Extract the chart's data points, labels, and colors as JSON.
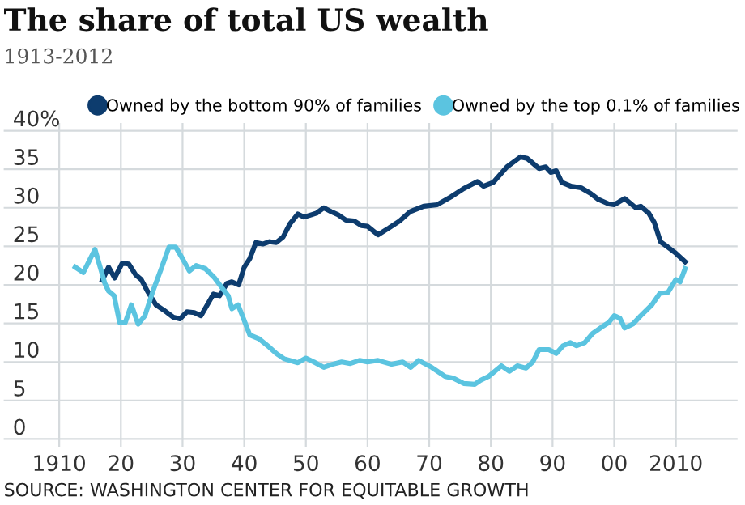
{
  "chart_data": {
    "type": "line",
    "title": "The share of total US wealth",
    "subtitle": "1913-2012",
    "annotations": [
      "SOURCE: WASHINGTON CENTER FOR EQUITABLE GROWTH"
    ],
    "xlim": [
      1901,
      2020
    ],
    "ylim": [
      -1,
      41
    ],
    "xticks": [
      1910,
      {
        "value": 1920,
        "label": "20"
      },
      {
        "value": 1930,
        "label": "30"
      },
      {
        "value": 1940,
        "label": "40"
      },
      {
        "value": 1950,
        "label": "50"
      },
      {
        "value": 1960,
        "label": "60"
      },
      {
        "value": 1970,
        "label": "70"
      },
      {
        "value": 1980,
        "label": "80"
      },
      {
        "value": 1990,
        "label": "90"
      },
      {
        "value": 2000,
        "label": "00"
      },
      2010
    ],
    "yticks": [
      0,
      5,
      10,
      15,
      20,
      25,
      30,
      35,
      {
        "value": 40,
        "label": "40%"
      }
    ],
    "grid": true,
    "legend": "top",
    "series": [
      {
        "name": "Owned by the bottom 90% of families",
        "color": "#0d3c6e",
        "x": [
          1917,
          1918,
          1919,
          1920.2,
          1921.3,
          1922.4,
          1923.3,
          1924.3,
          1925.7,
          1927,
          1928.5,
          1929.6,
          1930.7,
          1931.9,
          1933,
          1935,
          1936,
          1937.2,
          1938,
          1939.1,
          1940,
          1940.9,
          1941.9,
          1943,
          1944.1,
          1945.2,
          1946.3,
          1947.4,
          1948.7,
          1949.7,
          1950.9,
          1951.7,
          1952.9,
          1954.1,
          1955.2,
          1956.5,
          1957.8,
          1959,
          1960,
          1961.7,
          1963.5,
          1965.2,
          1966.9,
          1969.1,
          1971.3,
          1973.5,
          1975.6,
          1977.8,
          1978.8,
          1980.4,
          1982.6,
          1984.8,
          1985.9,
          1987.8,
          1988.9,
          1989.7,
          1990.6,
          1991.5,
          1993,
          1994.6,
          1996.1,
          1997.4,
          1999.1,
          2000,
          2001.7,
          2003.5,
          2004.3,
          2005.6,
          2006.5,
          2007.5,
          2008.7,
          2010,
          2011.5
        ],
        "values": [
          20.6,
          22.3,
          20.9,
          22.8,
          22.7,
          21.3,
          20.7,
          19.2,
          17.4,
          16.7,
          15.8,
          15.6,
          16.5,
          16.4,
          16.0,
          18.8,
          18.6,
          20.2,
          20.4,
          20.0,
          22.3,
          23.4,
          25.5,
          25.3,
          25.6,
          25.5,
          26.2,
          27.9,
          29.2,
          28.8,
          29.1,
          29.3,
          30.0,
          29.5,
          29.1,
          28.4,
          28.3,
          27.7,
          27.6,
          26.5,
          27.4,
          28.3,
          29.5,
          30.2,
          30.4,
          31.4,
          32.5,
          33.4,
          32.8,
          33.3,
          35.3,
          36.6,
          36.4,
          35.1,
          35.3,
          34.6,
          34.8,
          33.3,
          32.8,
          32.6,
          31.9,
          31.1,
          30.5,
          30.4,
          31.2,
          30.0,
          30.2,
          29.3,
          28.1,
          25.6,
          24.9,
          24.1,
          23.0
        ]
      },
      {
        "name": "Owned by the top 0.1% of families",
        "color": "#5bc4e0",
        "x": [
          1912.6,
          1913.9,
          1915.8,
          1917.4,
          1918,
          1918.9,
          1919.8,
          1920.7,
          1921.7,
          1922.8,
          1923.9,
          1925.2,
          1926.5,
          1927.8,
          1928.9,
          1930,
          1931.1,
          1932.2,
          1933.7,
          1935.2,
          1936.5,
          1937.4,
          1938,
          1939,
          1939.7,
          1940.9,
          1942.4,
          1944.1,
          1945.2,
          1946.5,
          1948.7,
          1950,
          1951.3,
          1952.9,
          1954.3,
          1955.8,
          1957.2,
          1958.7,
          1960,
          1961.7,
          1963.9,
          1965.7,
          1967,
          1968.3,
          1970.4,
          1972.6,
          1973.9,
          1975.6,
          1977.4,
          1978.3,
          1979.6,
          1981.7,
          1983,
          1984.3,
          1985.7,
          1986.8,
          1987.8,
          1989.4,
          1990.6,
          1991.7,
          1992.9,
          1993.9,
          1995.2,
          1996.5,
          1998.1,
          1999.1,
          2000,
          2000.9,
          2001.7,
          2003,
          2004.3,
          2006.1,
          2007.4,
          2008.7,
          2010,
          2010.7,
          2011.5
        ],
        "values": [
          22.3,
          21.6,
          24.6,
          20.2,
          19.2,
          18.6,
          15.1,
          15.1,
          17.4,
          14.9,
          16.0,
          19.2,
          22.0,
          24.9,
          24.9,
          23.4,
          21.8,
          22.5,
          22.1,
          20.9,
          19.5,
          18.6,
          16.9,
          17.4,
          16.0,
          13.5,
          13.0,
          11.9,
          11.1,
          10.4,
          9.9,
          10.5,
          10.0,
          9.3,
          9.7,
          10.0,
          9.8,
          10.2,
          10.0,
          10.2,
          9.7,
          10.0,
          9.3,
          10.2,
          9.3,
          8.1,
          7.9,
          7.2,
          7.1,
          7.6,
          8.1,
          9.5,
          8.8,
          9.5,
          9.2,
          10.0,
          11.6,
          11.6,
          11.1,
          12.1,
          12.5,
          12.1,
          12.5,
          13.7,
          14.6,
          15.1,
          16.0,
          15.7,
          14.4,
          14.9,
          16.0,
          17.4,
          18.9,
          19.0,
          20.7,
          20.4,
          22.1
        ]
      }
    ]
  }
}
